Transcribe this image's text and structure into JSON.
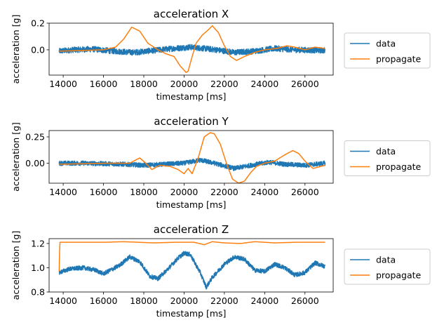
{
  "colors": {
    "data": "#1f77b4",
    "propagate": "#ff7f0e"
  },
  "chart_data": [
    {
      "type": "line",
      "title": "acceleration X",
      "xlabel": "timestamp [ms]",
      "ylabel": "acceleration [g]",
      "xlim": [
        13300,
        27400
      ],
      "ylim": [
        -0.19,
        0.2
      ],
      "xticks": [
        14000,
        16000,
        18000,
        20000,
        22000,
        24000,
        26000
      ],
      "xtick_labels": [
        "14000",
        "16000",
        "18000",
        "20000",
        "22000",
        "24000",
        "26000"
      ],
      "yticks": [
        0.0,
        0.2
      ],
      "ytick_labels": [
        "0.0",
        "0.2"
      ],
      "legend": "right",
      "series": [
        {
          "name": "data",
          "noise": 0.022,
          "points": [
            [
              13800,
              -0.01
            ],
            [
              14500,
              0.0
            ],
            [
              15500,
              0.005
            ],
            [
              16500,
              -0.01
            ],
            [
              17500,
              -0.02
            ],
            [
              18500,
              -0.005
            ],
            [
              19500,
              0.01
            ],
            [
              20300,
              0.02
            ],
            [
              21000,
              0.01
            ],
            [
              21600,
              0.0
            ],
            [
              22500,
              -0.02
            ],
            [
              23500,
              -0.01
            ],
            [
              24500,
              0.01
            ],
            [
              25500,
              0.0
            ],
            [
              27000,
              -0.005
            ]
          ]
        },
        {
          "name": "propagate",
          "noise": 0.0,
          "points": [
            [
              13800,
              -0.01
            ],
            [
              15000,
              -0.005
            ],
            [
              16000,
              0.0
            ],
            [
              16600,
              0.02
            ],
            [
              17000,
              0.08
            ],
            [
              17400,
              0.17
            ],
            [
              17800,
              0.14
            ],
            [
              18200,
              0.05
            ],
            [
              18700,
              0.0
            ],
            [
              19100,
              -0.03
            ],
            [
              19500,
              -0.05
            ],
            [
              19800,
              -0.12
            ],
            [
              20100,
              -0.17
            ],
            [
              20200,
              -0.16
            ],
            [
              20400,
              -0.05
            ],
            [
              20600,
              0.05
            ],
            [
              20900,
              0.11
            ],
            [
              21200,
              0.15
            ],
            [
              21400,
              0.18
            ],
            [
              21700,
              0.13
            ],
            [
              22000,
              0.03
            ],
            [
              22300,
              -0.05
            ],
            [
              22600,
              -0.08
            ],
            [
              23000,
              -0.05
            ],
            [
              23500,
              -0.02
            ],
            [
              24000,
              0.0
            ],
            [
              24600,
              0.01
            ],
            [
              25100,
              0.03
            ],
            [
              25500,
              0.02
            ],
            [
              26000,
              0.0
            ],
            [
              26500,
              0.02
            ],
            [
              27000,
              0.01
            ]
          ]
        }
      ]
    },
    {
      "type": "line",
      "title": "acceleration Y",
      "xlabel": "timestamp [ms]",
      "ylabel": "acceleration [g]",
      "xlim": [
        13300,
        27400
      ],
      "ylim": [
        -0.19,
        0.31
      ],
      "xticks": [
        14000,
        16000,
        18000,
        20000,
        22000,
        24000,
        26000
      ],
      "xtick_labels": [
        "14000",
        "16000",
        "18000",
        "20000",
        "22000",
        "24000",
        "26000"
      ],
      "yticks": [
        0.0,
        0.25
      ],
      "ytick_labels": [
        "0.00",
        "0.25"
      ],
      "legend": "right",
      "series": [
        {
          "name": "data",
          "noise": 0.022,
          "points": [
            [
              13800,
              0.0
            ],
            [
              15000,
              0.0
            ],
            [
              16000,
              -0.005
            ],
            [
              17000,
              -0.01
            ],
            [
              18000,
              -0.02
            ],
            [
              19000,
              -0.01
            ],
            [
              20000,
              0.0
            ],
            [
              20800,
              0.03
            ],
            [
              21500,
              0.0
            ],
            [
              22500,
              -0.05
            ],
            [
              23300,
              -0.02
            ],
            [
              24200,
              0.01
            ],
            [
              25000,
              -0.01
            ],
            [
              26000,
              -0.02
            ],
            [
              27000,
              0.0
            ]
          ]
        },
        {
          "name": "propagate",
          "noise": 0.0,
          "points": [
            [
              13800,
              -0.01
            ],
            [
              15000,
              -0.005
            ],
            [
              16200,
              0.0
            ],
            [
              17300,
              0.0
            ],
            [
              17800,
              0.05
            ],
            [
              18100,
              0.0
            ],
            [
              18400,
              -0.06
            ],
            [
              18800,
              -0.02
            ],
            [
              19300,
              -0.03
            ],
            [
              19700,
              -0.06
            ],
            [
              20000,
              -0.1
            ],
            [
              20200,
              -0.05
            ],
            [
              20400,
              -0.1
            ],
            [
              20700,
              0.05
            ],
            [
              21000,
              0.25
            ],
            [
              21300,
              0.29
            ],
            [
              21500,
              0.28
            ],
            [
              21800,
              0.18
            ],
            [
              22100,
              0.0
            ],
            [
              22400,
              -0.15
            ],
            [
              22700,
              -0.19
            ],
            [
              23000,
              -0.17
            ],
            [
              23300,
              -0.09
            ],
            [
              23600,
              -0.03
            ],
            [
              24000,
              0.0
            ],
            [
              24500,
              0.02
            ],
            [
              25000,
              0.08
            ],
            [
              25400,
              0.12
            ],
            [
              25700,
              0.09
            ],
            [
              26000,
              0.02
            ],
            [
              26400,
              -0.05
            ],
            [
              27000,
              -0.02
            ]
          ]
        }
      ]
    },
    {
      "type": "line",
      "title": "acceleration Z",
      "xlabel": "timestamp [ms]",
      "ylabel": "acceleration [g]",
      "xlim": [
        13300,
        27400
      ],
      "ylim": [
        0.8,
        1.24
      ],
      "xticks": [
        14000,
        16000,
        18000,
        20000,
        22000,
        24000,
        26000
      ],
      "xtick_labels": [
        "14000",
        "16000",
        "18000",
        "20000",
        "22000",
        "24000",
        "26000"
      ],
      "yticks": [
        0.8,
        1.0,
        1.2
      ],
      "ytick_labels": [
        "0.8",
        "1.0",
        "1.2"
      ],
      "legend": "right",
      "series": [
        {
          "name": "data",
          "noise": 0.018,
          "points": [
            [
              13800,
              0.96
            ],
            [
              14300,
              0.99
            ],
            [
              15000,
              1.0
            ],
            [
              15600,
              0.98
            ],
            [
              16000,
              0.95
            ],
            [
              16800,
              1.02
            ],
            [
              17300,
              1.09
            ],
            [
              17800,
              1.05
            ],
            [
              18300,
              0.93
            ],
            [
              18700,
              0.91
            ],
            [
              19200,
              0.99
            ],
            [
              19700,
              1.08
            ],
            [
              20000,
              1.12
            ],
            [
              20300,
              1.11
            ],
            [
              20800,
              0.96
            ],
            [
              21100,
              0.84
            ],
            [
              21400,
              0.92
            ],
            [
              22000,
              1.03
            ],
            [
              22500,
              1.09
            ],
            [
              23000,
              1.07
            ],
            [
              23500,
              0.98
            ],
            [
              24000,
              0.97
            ],
            [
              24500,
              1.03
            ],
            [
              25000,
              1.0
            ],
            [
              25500,
              0.94
            ],
            [
              26000,
              0.96
            ],
            [
              26500,
              1.04
            ],
            [
              27000,
              1.01
            ]
          ]
        },
        {
          "name": "propagate",
          "noise": 0.0,
          "points": [
            [
              13800,
              0.97
            ],
            [
              13830,
              1.21
            ],
            [
              16000,
              1.21
            ],
            [
              17000,
              1.215
            ],
            [
              18500,
              1.205
            ],
            [
              19500,
              1.21
            ],
            [
              20500,
              1.21
            ],
            [
              21000,
              1.19
            ],
            [
              21400,
              1.215
            ],
            [
              22000,
              1.205
            ],
            [
              22800,
              1.2
            ],
            [
              23500,
              1.215
            ],
            [
              24500,
              1.205
            ],
            [
              25500,
              1.21
            ],
            [
              26500,
              1.21
            ],
            [
              27000,
              1.21
            ]
          ]
        }
      ]
    }
  ]
}
